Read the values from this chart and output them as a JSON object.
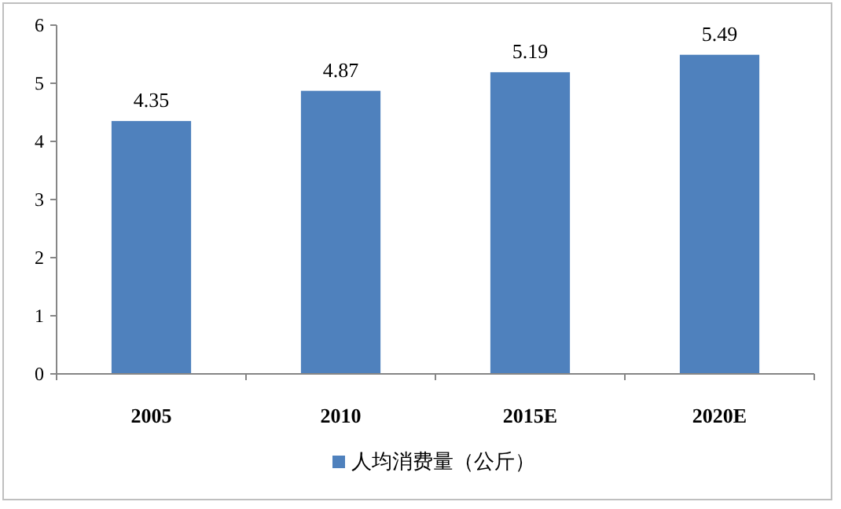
{
  "chart_data": {
    "type": "bar",
    "categories": [
      "2005",
      "2010",
      "2015E",
      "2020E"
    ],
    "series": [
      {
        "name": "人均消费量（公斤）",
        "color": "#4f81bd",
        "values": [
          4.35,
          4.87,
          5.19,
          5.49
        ]
      }
    ],
    "ylim": [
      0,
      6
    ],
    "yticks": [
      0,
      1,
      2,
      3,
      4,
      5,
      6
    ],
    "data_labels": true,
    "legend": "bottom"
  }
}
